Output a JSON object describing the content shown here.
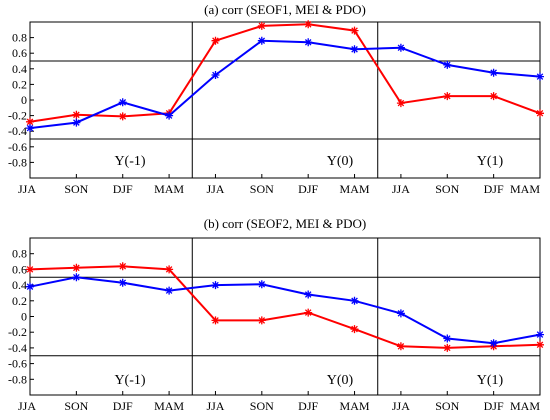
{
  "chart_data": [
    {
      "type": "line",
      "title": "(a) corr (SEOF1, MEI & PDO)",
      "categories": [
        "JJA",
        "SON",
        "DJF",
        "MAM",
        "JJA",
        "SON",
        "DJF",
        "MAM",
        "JJA",
        "SON",
        "DJF",
        "MAM"
      ],
      "ylim": [
        -1.0,
        1.0
      ],
      "yticks": [
        "0.8",
        "0.6",
        "0.4",
        "0.2",
        "0",
        "-0.2",
        "-0.4",
        "-0.6",
        "-0.8"
      ],
      "ytick_values": [
        0.8,
        0.6,
        0.4,
        0.2,
        0,
        -0.2,
        -0.4,
        -0.6,
        -0.8
      ],
      "reference_lines": [
        0.5,
        -0.5
      ],
      "phase_labels": [
        "Y(-1)",
        "Y(0)",
        "Y(1)"
      ],
      "grid": false,
      "series": [
        {
          "color": "#ff0000",
          "values": [
            -0.28,
            -0.19,
            -0.21,
            -0.17,
            0.76,
            0.95,
            0.97,
            0.89,
            -0.04,
            0.05,
            0.05,
            -0.17
          ]
        },
        {
          "color": "#0000ff",
          "values": [
            -0.36,
            -0.29,
            -0.03,
            -0.2,
            0.32,
            0.76,
            0.74,
            0.65,
            0.67,
            0.45,
            0.35,
            0.3
          ]
        }
      ]
    },
    {
      "type": "line",
      "title": "(b) corr (SEOF2, MEI & PDO)",
      "categories": [
        "JJA",
        "SON",
        "DJF",
        "MAM",
        "JJA",
        "SON",
        "DJF",
        "MAM",
        "JJA",
        "SON",
        "DJF",
        "MAM"
      ],
      "ylim": [
        -1.0,
        1.0
      ],
      "yticks": [
        "0.8",
        "0.6",
        "0.4",
        "0.2",
        "0",
        "-0.2",
        "-0.4",
        "-0.6",
        "-0.8"
      ],
      "ytick_values": [
        0.8,
        0.6,
        0.4,
        0.2,
        0,
        -0.2,
        -0.4,
        -0.6,
        -0.8
      ],
      "reference_lines": [
        0.5,
        -0.5
      ],
      "phase_labels": [
        "Y(-1)",
        "Y(0)",
        "Y(1)"
      ],
      "grid": false,
      "series": [
        {
          "color": "#ff0000",
          "values": [
            0.6,
            0.62,
            0.64,
            0.6,
            -0.05,
            -0.05,
            0.05,
            -0.16,
            -0.38,
            -0.4,
            -0.38,
            -0.36
          ]
        },
        {
          "color": "#0000ff",
          "values": [
            0.38,
            0.5,
            0.43,
            0.33,
            0.4,
            0.41,
            0.28,
            0.2,
            0.04,
            -0.28,
            -0.34,
            -0.23
          ]
        }
      ]
    }
  ]
}
